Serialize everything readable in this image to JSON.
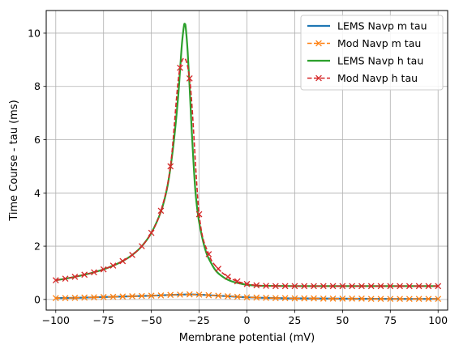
{
  "chart_data": {
    "type": "line",
    "xlabel": "Membrane potential (mV)",
    "ylabel": "Time Course - tau (ms)",
    "xlim": [
      -105,
      105
    ],
    "ylim": [
      -0.4,
      10.85
    ],
    "xticks": [
      -100,
      -75,
      -50,
      -25,
      0,
      25,
      50,
      75,
      100
    ],
    "yticks": [
      0,
      2,
      4,
      6,
      8,
      10
    ],
    "grid": true,
    "legend_position": "top-right",
    "series": [
      {
        "name": "LEMS Navp m tau",
        "color": "#1f77b4",
        "style": "solid",
        "marker": "none",
        "x": [
          -100,
          -90,
          -80,
          -70,
          -60,
          -50,
          -40,
          -35,
          -30,
          -25,
          -20,
          -10,
          0,
          10,
          25,
          50,
          75,
          100
        ],
        "y": [
          0.05,
          0.06,
          0.08,
          0.1,
          0.12,
          0.14,
          0.17,
          0.18,
          0.19,
          0.18,
          0.16,
          0.12,
          0.08,
          0.06,
          0.04,
          0.03,
          0.02,
          0.02
        ]
      },
      {
        "name": "Mod Navp m tau",
        "color": "#ff7f0e",
        "style": "dashed",
        "marker": "x",
        "x": [
          -100,
          -95,
          -90,
          -85,
          -80,
          -75,
          -70,
          -65,
          -60,
          -55,
          -50,
          -45,
          -40,
          -35,
          -30,
          -25,
          -20,
          -15,
          -10,
          -5,
          0,
          5,
          10,
          15,
          20,
          25,
          30,
          35,
          40,
          45,
          50,
          55,
          60,
          65,
          70,
          75,
          80,
          85,
          90,
          95,
          100
        ],
        "y": [
          0.05,
          0.05,
          0.06,
          0.07,
          0.08,
          0.09,
          0.1,
          0.11,
          0.12,
          0.13,
          0.14,
          0.15,
          0.17,
          0.18,
          0.19,
          0.18,
          0.16,
          0.14,
          0.12,
          0.1,
          0.08,
          0.07,
          0.06,
          0.05,
          0.05,
          0.04,
          0.04,
          0.04,
          0.03,
          0.03,
          0.03,
          0.03,
          0.03,
          0.02,
          0.02,
          0.02,
          0.02,
          0.02,
          0.02,
          0.02,
          0.02
        ]
      },
      {
        "name": "LEMS Navp h tau",
        "color": "#2ca02c",
        "style": "solid",
        "marker": "none",
        "x": [
          -100,
          -95,
          -90,
          -85,
          -80,
          -75,
          -70,
          -65,
          -60,
          -55,
          -50,
          -45,
          -42,
          -40,
          -38,
          -36,
          -35,
          -34,
          -33,
          -32.5,
          -32,
          -31,
          -30,
          -29,
          -28,
          -27,
          -26,
          -25,
          -23,
          -21,
          -19,
          -17,
          -15,
          -12,
          -10,
          -8,
          -5,
          0,
          5,
          10,
          25,
          50,
          75,
          100
        ],
        "y": [
          0.72,
          0.78,
          0.85,
          0.93,
          1.02,
          1.13,
          1.27,
          1.44,
          1.67,
          2.0,
          2.5,
          3.3,
          4.1,
          4.95,
          6.1,
          7.6,
          8.6,
          9.6,
          10.25,
          10.35,
          10.2,
          9.3,
          8.0,
          6.5,
          5.2,
          4.1,
          3.4,
          2.9,
          2.2,
          1.7,
          1.4,
          1.15,
          0.98,
          0.82,
          0.74,
          0.68,
          0.62,
          0.55,
          0.52,
          0.51,
          0.5,
          0.5,
          0.5,
          0.5
        ]
      },
      {
        "name": "Mod Navp h tau",
        "color": "#d62728",
        "style": "dashed",
        "marker": "x",
        "x": [
          -100,
          -95,
          -90,
          -85,
          -80,
          -75,
          -70,
          -65,
          -60,
          -55,
          -50,
          -45,
          -40,
          -35,
          -30,
          -25,
          -20,
          -15,
          -10,
          -5,
          0,
          5,
          10,
          15,
          20,
          25,
          30,
          35,
          40,
          45,
          50,
          55,
          60,
          65,
          70,
          75,
          80,
          85,
          90,
          95,
          100
        ],
        "y": [
          0.72,
          0.78,
          0.85,
          0.93,
          1.02,
          1.13,
          1.27,
          1.44,
          1.67,
          2.0,
          2.5,
          3.33,
          5.0,
          8.7,
          8.3,
          3.2,
          1.7,
          1.15,
          0.85,
          0.68,
          0.58,
          0.53,
          0.51,
          0.5,
          0.5,
          0.5,
          0.5,
          0.5,
          0.5,
          0.5,
          0.5,
          0.5,
          0.5,
          0.5,
          0.5,
          0.5,
          0.5,
          0.5,
          0.5,
          0.5,
          0.5
        ]
      }
    ]
  }
}
